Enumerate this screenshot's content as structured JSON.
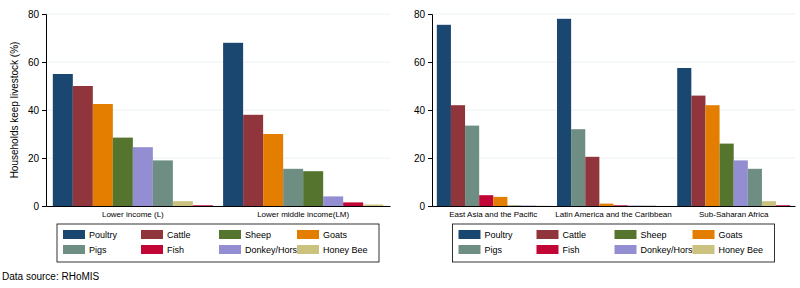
{
  "chart_data": [
    {
      "type": "bar",
      "ylabel": "Households keep livestock (%)",
      "categories": [
        "Lower income (L)",
        "Lower middle income(LM)"
      ],
      "series": [
        {
          "name": "Poultry",
          "color": "#1a476f",
          "values": [
            55,
            68
          ]
        },
        {
          "name": "Cattle",
          "color": "#90353b",
          "values": [
            50,
            38
          ]
        },
        {
          "name": "Sheep",
          "color": "#55752f",
          "values": [
            28.5,
            14.5
          ]
        },
        {
          "name": "Goats",
          "color": "#e37e00",
          "values": [
            42.5,
            30
          ]
        },
        {
          "name": "Pigs",
          "color": "#6e8e84",
          "values": [
            19,
            15.5
          ]
        },
        {
          "name": "Fish",
          "color": "#c10534",
          "values": [
            0.3,
            1.5
          ]
        },
        {
          "name": "Donkey/Horses",
          "color": "#938dd2",
          "values": [
            24.5,
            4
          ]
        },
        {
          "name": "Honey Bee",
          "color": "#cac27e",
          "values": [
            2,
            0.6
          ]
        }
      ],
      "ylim": [
        0,
        80
      ],
      "yticks": [
        0,
        20,
        40,
        60,
        80
      ],
      "grid": true,
      "legend": "bottom"
    },
    {
      "type": "bar",
      "categories": [
        "East Asia and the Pacific",
        "Latin America and the Caribbean",
        "Sub-Saharan Africa"
      ],
      "series": [
        {
          "name": "Poultry",
          "color": "#1a476f",
          "values": [
            75.5,
            78,
            57.5
          ]
        },
        {
          "name": "Cattle",
          "color": "#90353b",
          "values": [
            42,
            20.5,
            46
          ]
        },
        {
          "name": "Sheep",
          "color": "#55752f",
          "values": [
            0.2,
            0.1,
            26
          ]
        },
        {
          "name": "Goats",
          "color": "#e37e00",
          "values": [
            3.8,
            1,
            42
          ]
        },
        {
          "name": "Pigs",
          "color": "#6e8e84",
          "values": [
            33.5,
            32,
            15.5
          ]
        },
        {
          "name": "Fish",
          "color": "#c10534",
          "values": [
            4.5,
            0.3,
            0.3
          ]
        },
        {
          "name": "Donkey/Horses",
          "color": "#938dd2",
          "values": [
            0.2,
            0.2,
            19
          ]
        },
        {
          "name": "Honey Bee",
          "color": "#cac27e",
          "values": [
            0.1,
            0,
            2
          ]
        }
      ],
      "ylim": [
        0,
        80
      ],
      "yticks": [
        0,
        20,
        40,
        60,
        80
      ],
      "grid": true,
      "legend": "bottom"
    }
  ],
  "note": "Data source: RHoMIS"
}
